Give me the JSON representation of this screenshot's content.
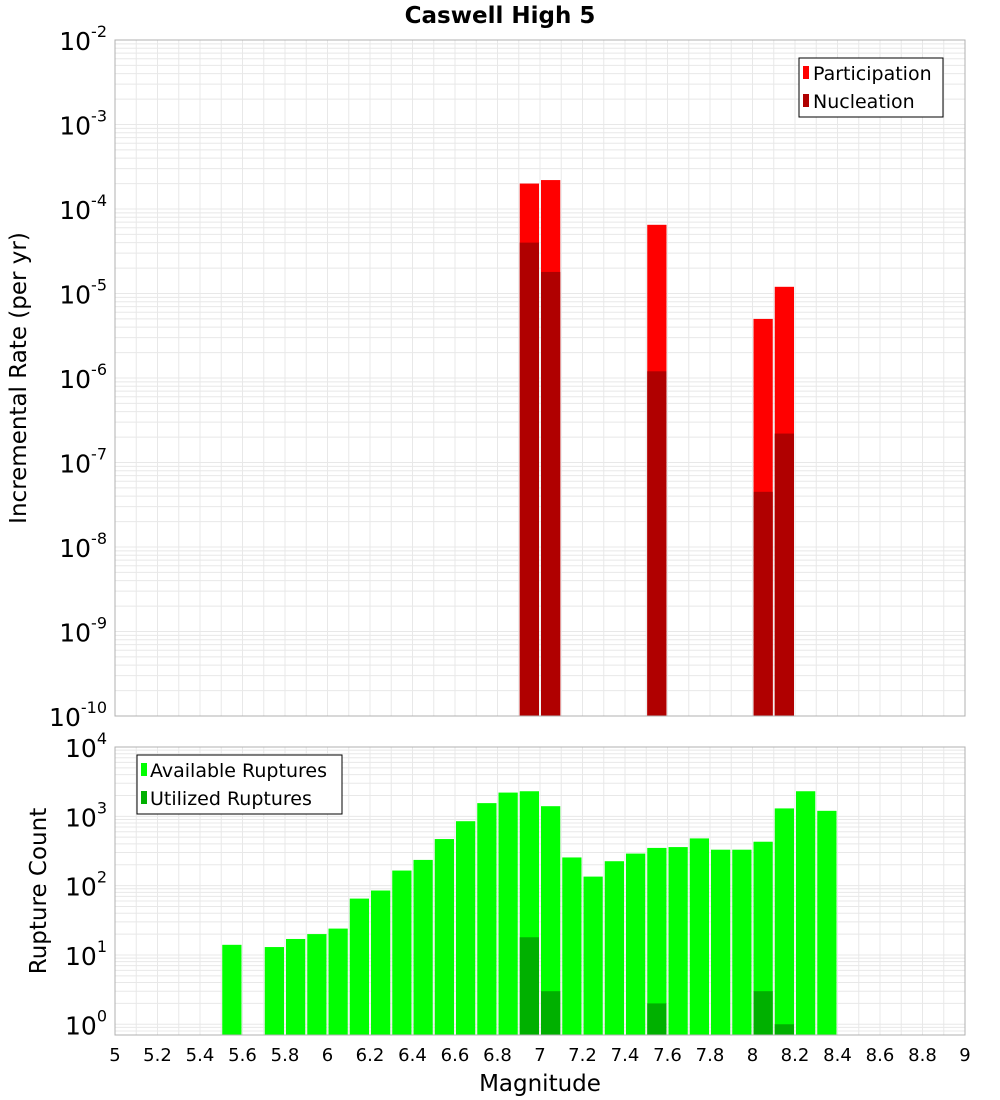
{
  "title": "Caswell High 5",
  "x_axis": {
    "label": "Magnitude",
    "range": [
      5,
      9
    ],
    "ticks": [
      "5",
      "5.2",
      "5.4",
      "5.6",
      "5.8",
      "6",
      "6.2",
      "6.4",
      "6.6",
      "6.8",
      "7",
      "7.2",
      "7.4",
      "7.6",
      "7.8",
      "8",
      "8.2",
      "8.4",
      "8.6",
      "8.8",
      "9"
    ]
  },
  "chart_data": [
    {
      "type": "bar",
      "panel": "top",
      "ylabel": "Incremental Rate (per yr)",
      "yscale": "log",
      "ylim": [
        1e-10,
        0.01
      ],
      "ytick_exponents": [
        "-10",
        "-9",
        "-8",
        "-7",
        "-6",
        "-5",
        "-4",
        "-3",
        "-2"
      ],
      "legend_position": "top-right",
      "series": [
        {
          "name": "Participation",
          "color": "#ff0000",
          "x": [
            6.95,
            7.05,
            7.55,
            8.05,
            8.15
          ],
          "values": [
            0.0002,
            0.00022,
            6.5e-05,
            5e-06,
            1.2e-05
          ]
        },
        {
          "name": "Nucleation",
          "color": "#b00000",
          "x": [
            6.95,
            7.05,
            7.55,
            8.05,
            8.15
          ],
          "values": [
            4e-05,
            1.8e-05,
            1.2e-06,
            4.5e-08,
            2.2e-07
          ]
        }
      ]
    },
    {
      "type": "bar",
      "panel": "bottom",
      "ylabel": "Rupture Count",
      "yscale": "log",
      "ylim": [
        0.7,
        10000
      ],
      "ytick_exponents": [
        "0",
        "1",
        "2",
        "3",
        "4"
      ],
      "legend_position": "top-left",
      "series": [
        {
          "name": "Available Ruptures",
          "color": "#00ff00",
          "x": [
            5.55,
            5.75,
            5.85,
            5.95,
            6.05,
            6.15,
            6.25,
            6.35,
            6.45,
            6.55,
            6.65,
            6.75,
            6.85,
            6.95,
            7.05,
            7.15,
            7.25,
            7.35,
            7.45,
            7.55,
            7.65,
            7.75,
            7.85,
            7.95,
            8.05,
            8.15,
            8.25,
            8.35
          ],
          "values": [
            14,
            13,
            17,
            20,
            24,
            65,
            85,
            165,
            235,
            470,
            850,
            1550,
            2200,
            2300,
            1400,
            255,
            135,
            225,
            290,
            350,
            360,
            480,
            330,
            330,
            430,
            1300,
            2300,
            1200
          ]
        },
        {
          "name": "Utilized Ruptures",
          "color": "#00b000",
          "x": [
            6.95,
            7.05,
            7.55,
            8.05,
            8.15
          ],
          "values": [
            18,
            3,
            2,
            3,
            1
          ]
        }
      ]
    }
  ]
}
